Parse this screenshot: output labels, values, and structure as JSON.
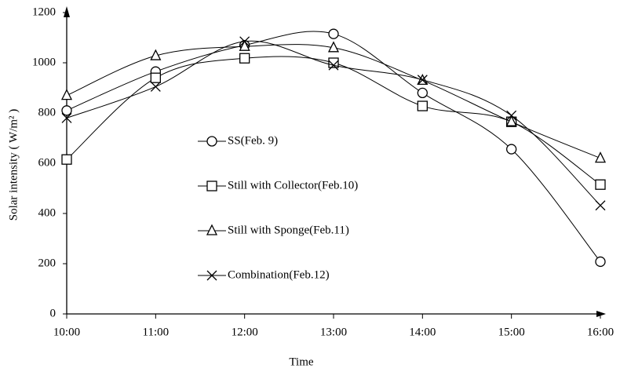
{
  "chart_data": {
    "type": "line",
    "x_label": "Time",
    "y_label": "Solar intensity ( W/m² )",
    "categories": [
      "10:00",
      "11:00",
      "12:00",
      "13:00",
      "14:00",
      "15:00",
      "16:00"
    ],
    "ylim": [
      0,
      1200
    ],
    "yticks": [
      0,
      200,
      400,
      600,
      800,
      1000,
      1200
    ],
    "smooth": true,
    "series": [
      {
        "name": "SS(Feb. 9)",
        "color": "#000000",
        "marker": "circle",
        "values": [
          810,
          965,
          1070,
          1115,
          880,
          656,
          208
        ]
      },
      {
        "name": "Still with Collector(Feb.10)",
        "color": "#000000",
        "marker": "square",
        "values": [
          615,
          940,
          1018,
          1000,
          828,
          765,
          515
        ]
      },
      {
        "name": "Still with Sponge(Feb.11)",
        "color": "#000000",
        "marker": "triangle",
        "values": [
          870,
          1028,
          1065,
          1060,
          930,
          765,
          620
        ]
      },
      {
        "name": "Combination(Feb.12)",
        "color": "#000000",
        "marker": "cross",
        "values": [
          780,
          905,
          1085,
          990,
          932,
          790,
          432
        ]
      }
    ]
  }
}
